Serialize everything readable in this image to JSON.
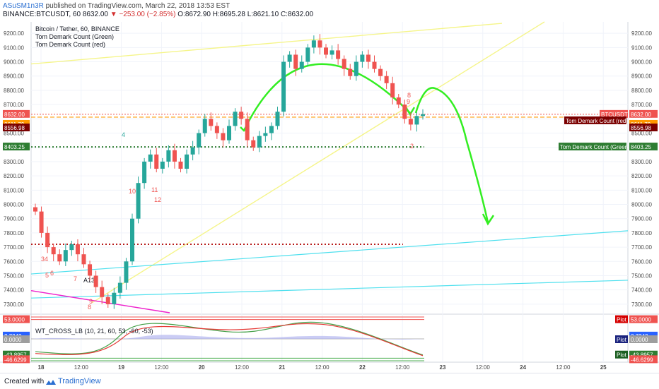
{
  "header": {
    "user": "ASuSM1n3R",
    "published": "published on TradingView.com, March 22, 2018 13:53 EST",
    "symbol": "BINANCE:BTCUSDT, 60",
    "last": "8632.00",
    "change": "−253.00 (−2.85%)",
    "ohlc": "O:8672.90 H:8695.28 L:8621.10 C:8632.00"
  },
  "legend": {
    "title": "Bitcoin / Tether, 60, BINANCE",
    "ind1": "Tom Demark Count (Green)",
    "ind2": "Tom Demark Count (red)"
  },
  "price_axis": {
    "ticks": [
      "9200.00",
      "9100.00",
      "9000.00",
      "8900.00",
      "8800.00",
      "8700.00",
      "8632.00",
      "8600.00",
      "8500.00",
      "8400.00",
      "8300.00",
      "8200.00",
      "8100.00",
      "8000.00",
      "7900.00",
      "7800.00",
      "7700.00",
      "7600.00",
      "7500.00",
      "7400.00",
      "7300.00"
    ],
    "left_labels": {
      "last": "8632.00",
      "countdown": "06:05",
      "orange": "8611.79",
      "dark": "8556.98",
      "green": "8403.25"
    },
    "right_labels": {
      "btc": "BTCUSDT",
      "last": "8632.00",
      "countdown": "06:05",
      "red_count": "Tom Demark Count (red)",
      "orange": "8611.79",
      "dark": "8556.98",
      "green_count": "Tom Demark Count (Green)",
      "green": "8403.25"
    }
  },
  "time_axis": [
    "18",
    "12:00",
    "19",
    "12:00",
    "20",
    "12:00",
    "21",
    "12:00",
    "22",
    "12:00",
    "23",
    "12:00",
    "24",
    "12:00",
    "25"
  ],
  "oscillator": {
    "title": "WT_CROSS_LB (10, 21, 60, 53, -60, -53)",
    "left_labels": [
      "53.0000",
      "2.7343",
      "0.0000",
      "-43.8957",
      "-46.6299"
    ],
    "right_labels": [
      "53.0000",
      "Plot",
      "2.7343",
      "Plot",
      "0.0000",
      "Plot",
      "-43.8957",
      "-46.6299"
    ]
  },
  "td_numbers": [
    "34",
    "5",
    "6",
    "7",
    "A13",
    "8",
    "9",
    "10",
    "11",
    "12",
    "4",
    "8",
    "9",
    "2"
  ],
  "footer": {
    "created_with": "Created with",
    "brand": "TradingView"
  },
  "colors": {
    "up": "#26a69a",
    "down": "#ef5350",
    "forecast": "#33ee22",
    "trend_yellow": "#f5f58a",
    "channel_cyan": "#4fe0ee",
    "magenta": "#ee22cc",
    "dotted_red": "#b71c1c",
    "dotted_green": "#2e7d32",
    "dash_orange": "#ff9800"
  },
  "chart_data": {
    "type": "candlestick",
    "title": "Bitcoin / Tether, 60, BINANCE",
    "ylim": [
      7240,
      9280
    ],
    "last_price": 8632.0,
    "horizontal_levels": [
      8632.0,
      8611.79,
      8556.98,
      8403.25,
      7720.0
    ],
    "closes_approx": [
      7950,
      7800,
      7700,
      7650,
      7600,
      7680,
      7720,
      7650,
      7580,
      7500,
      7420,
      7350,
      7300,
      7380,
      7450,
      7600,
      7900,
      8150,
      8300,
      8350,
      8250,
      8300,
      8380,
      8300,
      8250,
      8350,
      8400,
      8500,
      8600,
      8550,
      8500,
      8450,
      8550,
      8650,
      8600,
      8450,
      8400,
      8480,
      8500,
      8550,
      8650,
      9000,
      9050,
      8950,
      9000,
      9100,
      9150,
      9100,
      9050,
      9080,
      9020,
      8950,
      8900,
      9000,
      9050,
      9000,
      8950,
      8900,
      8850,
      8750,
      8700,
      8600,
      8560,
      8620,
      8632
    ]
  }
}
